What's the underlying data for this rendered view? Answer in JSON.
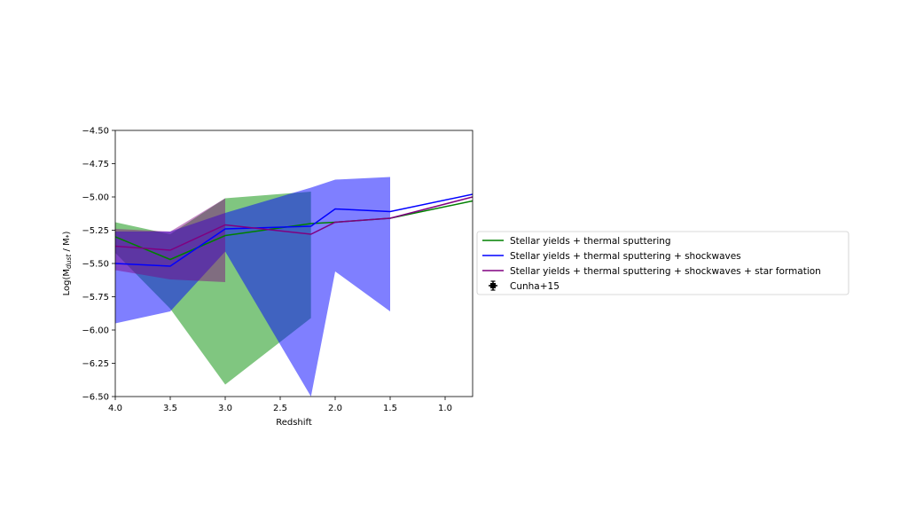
{
  "chart_data": {
    "type": "line",
    "xlabel": "Redshift",
    "ylabel_main": "Log(M",
    "ylabel_sub": "dust",
    "ylabel_rest": " / M",
    "ylabel_star": "*",
    "ylabel_end": ")",
    "xlim": [
      4.0,
      0.75
    ],
    "ylim": [
      -6.5,
      -4.5
    ],
    "x_ticks": [
      {
        "value": 4.0,
        "label": "4.0"
      },
      {
        "value": 3.5,
        "label": "3.5"
      },
      {
        "value": 3.0,
        "label": "3.0"
      },
      {
        "value": 2.5,
        "label": "2.5"
      },
      {
        "value": 2.0,
        "label": "2.0"
      },
      {
        "value": 1.5,
        "label": "1.5"
      },
      {
        "value": 1.0,
        "label": "1.0"
      }
    ],
    "y_ticks": [
      {
        "value": -4.5,
        "label": "−4.50"
      },
      {
        "value": -4.75,
        "label": "−4.75"
      },
      {
        "value": -5.0,
        "label": "−5.00"
      },
      {
        "value": -5.25,
        "label": "−5.25"
      },
      {
        "value": -5.5,
        "label": "−5.50"
      },
      {
        "value": -5.75,
        "label": "−5.75"
      },
      {
        "value": -6.0,
        "label": "−6.00"
      },
      {
        "value": -6.25,
        "label": "−6.25"
      },
      {
        "value": -6.5,
        "label": "−6.50"
      }
    ],
    "grid": false,
    "legend_placement": "outside right",
    "bands": [
      {
        "series": "green",
        "color": "#2ca02c",
        "opacity": 0.6,
        "upper": [
          [
            4.0,
            -5.19
          ],
          [
            3.5,
            -5.28
          ],
          [
            3.0,
            -5.01
          ],
          [
            2.22,
            -4.96
          ]
        ],
        "lower": [
          [
            4.0,
            -5.42
          ],
          [
            3.5,
            -5.84
          ],
          [
            3.0,
            -6.41
          ],
          [
            2.22,
            -5.91
          ]
        ]
      },
      {
        "series": "blue",
        "color": "#0000ff",
        "opacity": 0.5,
        "upper": [
          [
            4.0,
            -5.26
          ],
          [
            3.5,
            -5.26
          ],
          [
            3.0,
            -5.12
          ],
          [
            2.22,
            -4.93
          ],
          [
            2.0,
            -4.87
          ],
          [
            1.5,
            -4.85
          ]
        ],
        "lower": [
          [
            4.0,
            -5.95
          ],
          [
            3.5,
            -5.86
          ],
          [
            3.0,
            -5.41
          ],
          [
            2.22,
            -6.5
          ],
          [
            2.0,
            -5.56
          ],
          [
            1.5,
            -5.86
          ]
        ]
      },
      {
        "series": "purple",
        "color": "#800080",
        "opacity": 0.45,
        "upper": [
          [
            4.0,
            -5.24
          ],
          [
            3.5,
            -5.26
          ],
          [
            3.0,
            -5.01
          ]
        ],
        "lower": [
          [
            4.0,
            -5.55
          ],
          [
            3.5,
            -5.62
          ],
          [
            3.0,
            -5.64
          ]
        ]
      }
    ],
    "series": [
      {
        "name": "Stellar yields + thermal sputtering",
        "color": "#008000",
        "points": [
          [
            4.0,
            -5.3
          ],
          [
            3.5,
            -5.47
          ],
          [
            3.0,
            -5.29
          ],
          [
            2.22,
            -5.2
          ],
          [
            2.0,
            -5.19
          ],
          [
            1.5,
            -5.16
          ],
          [
            0.75,
            -5.03
          ]
        ]
      },
      {
        "name": "Stellar yields + thermal sputtering + shockwaves",
        "color": "#0000ff",
        "points": [
          [
            4.0,
            -5.5
          ],
          [
            3.5,
            -5.52
          ],
          [
            3.0,
            -5.24
          ],
          [
            2.22,
            -5.22
          ],
          [
            2.0,
            -5.09
          ],
          [
            1.5,
            -5.11
          ],
          [
            0.75,
            -4.98
          ]
        ]
      },
      {
        "name": "Stellar yields + thermal sputtering + shockwaves + star formation",
        "color": "#800080",
        "points": [
          [
            4.0,
            -5.37
          ],
          [
            3.5,
            -5.4
          ],
          [
            3.0,
            -5.21
          ],
          [
            2.22,
            -5.28
          ],
          [
            2.0,
            -5.19
          ],
          [
            1.5,
            -5.16
          ],
          [
            0.75,
            -5.0
          ]
        ]
      }
    ],
    "observations": {
      "name": "Cunha+15",
      "color": "#000000",
      "points": []
    }
  }
}
